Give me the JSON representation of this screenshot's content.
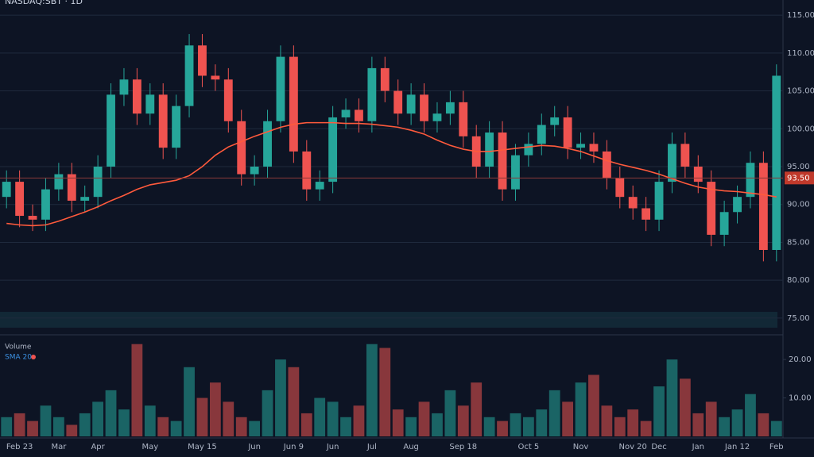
{
  "chart_data": {
    "type": "candlestick",
    "title": "NASDAQ:SBT · 1D",
    "volume_title": "Volume",
    "ma_name": "SMA 20",
    "up_color": "#26a69a",
    "down_color": "#ef5350",
    "ma_color": "#ff5a3c",
    "ma_label_color": "#3b8fe0",
    "grid": true,
    "categories": [
      null,
      "Feb 23",
      null,
      null,
      "Mar",
      null,
      null,
      "Apr",
      null,
      null,
      null,
      "May",
      null,
      null,
      null,
      "May 15",
      null,
      null,
      null,
      "Jun",
      null,
      null,
      "Jun 9",
      null,
      null,
      "Jun",
      null,
      null,
      "Jul",
      null,
      null,
      "Aug",
      null,
      null,
      null,
      "Sep 18",
      null,
      null,
      null,
      null,
      "Oct 5",
      null,
      null,
      null,
      "Nov",
      null,
      null,
      null,
      "Nov 20",
      null,
      "Dec",
      null,
      null,
      "Jan",
      null,
      null,
      "Jan 12",
      null,
      null,
      "Feb"
    ],
    "open": [
      91,
      93,
      88.5,
      88,
      92,
      94,
      90.5,
      91,
      95,
      104.5,
      106.5,
      102,
      104.5,
      97.5,
      103,
      111,
      107,
      106.5,
      101,
      94,
      95,
      101,
      109.5,
      97,
      92,
      93,
      101.5,
      102.5,
      101,
      108,
      105,
      102,
      104.5,
      101,
      102,
      103.5,
      99,
      95,
      99.5,
      92,
      96.5,
      98,
      100.5,
      101.5,
      97.5,
      98,
      97,
      93.5,
      91,
      89.5,
      88,
      93,
      98,
      95,
      93,
      86,
      89,
      91,
      95.5,
      84
    ],
    "high": [
      94.5,
      94.5,
      90,
      93.5,
      95.5,
      95.5,
      92.5,
      96.5,
      106,
      108,
      108,
      106,
      106,
      104.5,
      112.5,
      112.5,
      108.5,
      108,
      102.5,
      96.5,
      102.5,
      111,
      111,
      98.5,
      94.5,
      103,
      104,
      104,
      109.5,
      109.5,
      106.5,
      106,
      106,
      103.5,
      105,
      105,
      100.5,
      101,
      101,
      98,
      99.5,
      102,
      103,
      103,
      99.5,
      99.5,
      98.5,
      95,
      92.5,
      91,
      94.5,
      99.5,
      99.5,
      96.5,
      94.5,
      90.5,
      92.5,
      97,
      97,
      108.5
    ],
    "low": [
      89.5,
      87,
      86.5,
      86.5,
      90.5,
      89,
      89,
      89.5,
      93.5,
      103,
      100.5,
      100.5,
      96,
      96,
      101.5,
      105.5,
      105,
      99.5,
      92.5,
      92.5,
      93.5,
      99.5,
      95.5,
      90.5,
      90.5,
      91.5,
      100,
      99.5,
      99.5,
      103.5,
      100.5,
      100.5,
      99.5,
      99.5,
      100.5,
      97.5,
      93.5,
      93.5,
      90.5,
      90.5,
      95,
      96.5,
      99,
      96,
      96,
      95.5,
      92,
      89.5,
      88,
      86.5,
      86.5,
      91.5,
      93.5,
      91.5,
      84.5,
      84.5,
      87.5,
      89.5,
      82.5,
      82.5
    ],
    "close": [
      93,
      88.5,
      88,
      92,
      94,
      90.5,
      91,
      95,
      104.5,
      106.5,
      102,
      104.5,
      97.5,
      103,
      111,
      107,
      106.5,
      101,
      94,
      95,
      101,
      109.5,
      97,
      92,
      93,
      101.5,
      102.5,
      101,
      108,
      105,
      102,
      104.5,
      101,
      102,
      103.5,
      99,
      95,
      99.5,
      92,
      96.5,
      98,
      100.5,
      101.5,
      97.5,
      98,
      97,
      93.5,
      91,
      89.5,
      88,
      93,
      98,
      95,
      93,
      86,
      89,
      91,
      95.5,
      84,
      107
    ],
    "ma": [
      87.5,
      87.3,
      87.2,
      87.3,
      87.8,
      88.4,
      89.0,
      89.7,
      90.5,
      91.2,
      92.0,
      92.6,
      92.9,
      93.2,
      93.8,
      95.0,
      96.5,
      97.6,
      98.3,
      99.0,
      99.6,
      100.2,
      100.6,
      100.8,
      100.8,
      100.8,
      100.7,
      100.7,
      100.6,
      100.4,
      100.2,
      99.8,
      99.3,
      98.5,
      97.8,
      97.3,
      97.0,
      97.0,
      97.2,
      97.4,
      97.6,
      97.8,
      97.7,
      97.4,
      97.0,
      96.4,
      95.8,
      95.3,
      94.9,
      94.5,
      94.0,
      93.4,
      92.8,
      92.3,
      92.0,
      91.8,
      91.7,
      91.5,
      91.3,
      91.0
    ],
    "volume": [
      5,
      6,
      4,
      8,
      5,
      3,
      6,
      9,
      12,
      7,
      24,
      8,
      5,
      4,
      18,
      10,
      14,
      9,
      5,
      4,
      12,
      20,
      18,
      6,
      10,
      9,
      5,
      8,
      24,
      23,
      7,
      5,
      9,
      6,
      12,
      8,
      14,
      5,
      4,
      6,
      5,
      7,
      12,
      9,
      14,
      16,
      8,
      5,
      7,
      4,
      13,
      20,
      15,
      6,
      9,
      5,
      7,
      11,
      6,
      4
    ],
    "ylim": [
      73,
      117
    ],
    "yticks": [
      {
        "value": 75,
        "label": "75.00"
      },
      {
        "value": 80,
        "label": "80.00"
      },
      {
        "value": 85,
        "label": "85.00"
      },
      {
        "value": 90,
        "label": "90.00"
      },
      {
        "value": 95,
        "label": "95.00"
      },
      {
        "value": 100,
        "label": "100.00"
      },
      {
        "value": 105,
        "label": "105.00"
      },
      {
        "value": 110,
        "label": "110.00"
      },
      {
        "value": 115,
        "label": "115.00"
      }
    ],
    "price_line": {
      "value": 93.5,
      "label": "93.50"
    },
    "vlim": [
      0,
      26
    ],
    "vticks": [
      {
        "value": 10,
        "label": "10.00"
      },
      {
        "value": 20,
        "label": "20.00"
      }
    ]
  }
}
